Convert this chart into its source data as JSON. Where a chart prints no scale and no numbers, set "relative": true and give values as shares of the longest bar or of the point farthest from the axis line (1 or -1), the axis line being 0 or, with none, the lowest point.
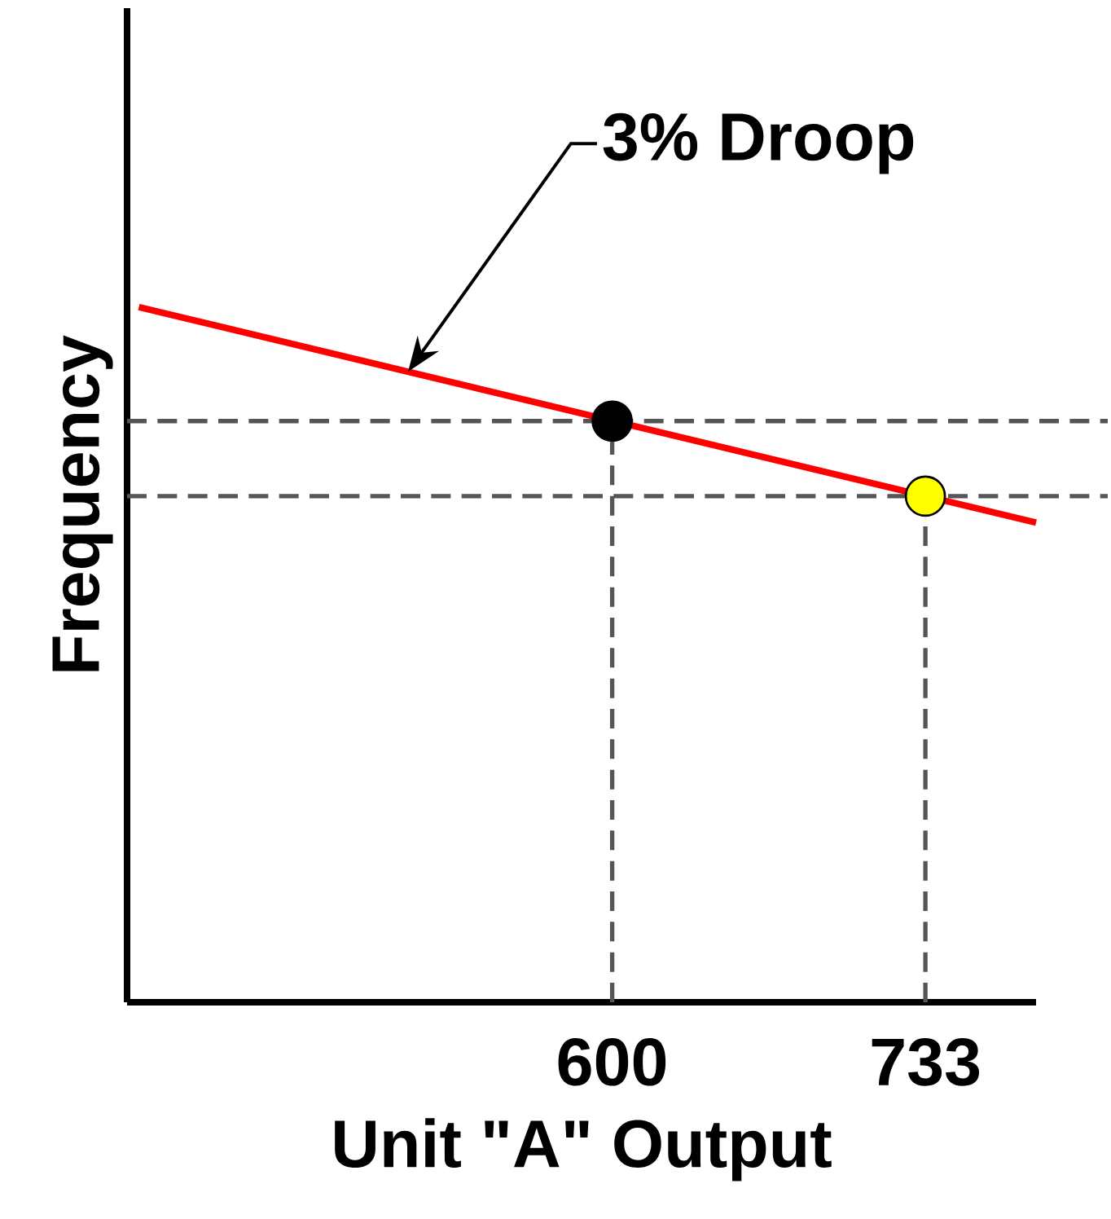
{
  "chart_data": {
    "type": "line",
    "xlabel": "Unit \"A\" Output",
    "ylabel": "Frequency",
    "relative": true,
    "xlim": [
      394,
      780
    ],
    "xticks": [
      600,
      733
    ],
    "series": [
      {
        "color": "#ff0000",
        "x": [
          399,
          780
        ],
        "values": [
          1.0,
          0.69
        ],
        "marker": "none"
      },
      {
        "type": "scatter",
        "x": [
          600,
          733
        ],
        "values": [
          0.836,
          0.728
        ],
        "colors": [
          "#000000",
          "#ffff00"
        ],
        "marker": "circle"
      }
    ],
    "ref_lines": [
      {
        "axis": "y",
        "value": 0.836,
        "line_style": "dashed",
        "color": "#555555"
      },
      {
        "axis": "y",
        "value": 0.728,
        "line_style": "dashed",
        "color": "#555555"
      },
      {
        "axis": "x",
        "value": 600,
        "line_style": "dashed",
        "color": "#555555"
      },
      {
        "axis": "x",
        "value": 733,
        "line_style": "dashed",
        "color": "#555555"
      }
    ],
    "annotations": [
      "3% Droop"
    ]
  }
}
